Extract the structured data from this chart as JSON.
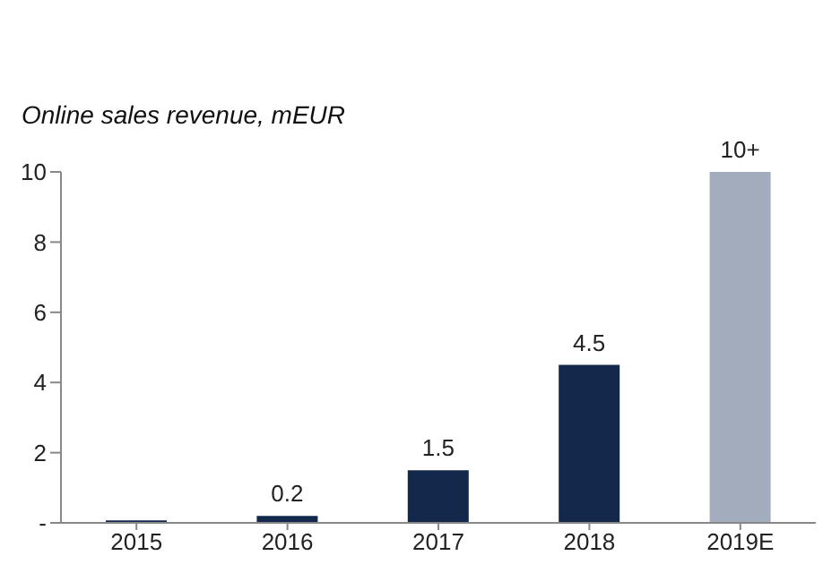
{
  "chart_data": {
    "type": "bar",
    "title": "Online sales revenue, mEUR",
    "categories": [
      "2015",
      "2016",
      "2017",
      "2018",
      "2019E"
    ],
    "values": [
      0.07,
      0.2,
      1.5,
      4.5,
      10
    ],
    "colors": [
      "#13284a",
      "#13284a",
      "#13284a",
      "#13284a",
      "#a3acbd"
    ],
    "value_labels": [
      null,
      "0.2",
      "1.5",
      "4.5",
      "10+"
    ],
    "ylim": [
      0,
      10
    ],
    "yticks": [
      {
        "value": 0,
        "label": "-"
      },
      2,
      4,
      6,
      8,
      10
    ],
    "grid": false,
    "legend": false
  }
}
